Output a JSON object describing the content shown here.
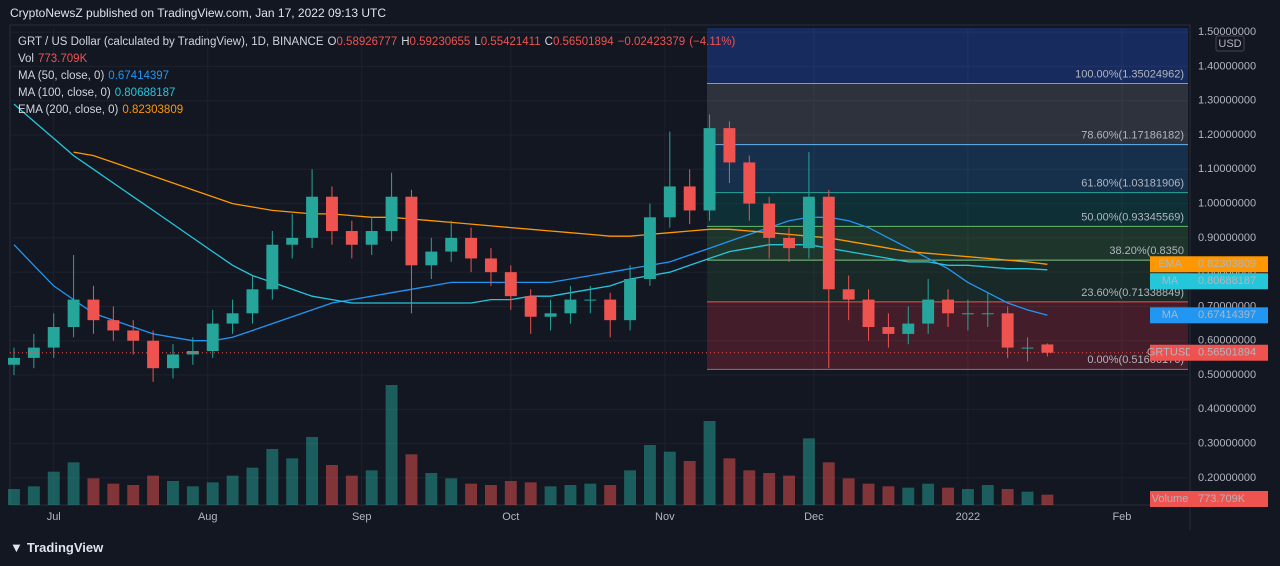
{
  "header": {
    "title": "CryptoNewsZ published on TradingView.com, Jan 17, 2022 09:13 UTC"
  },
  "legend": {
    "symbol": "GRT / US Dollar (calculated by TradingView), 1D, BINANCE",
    "ohlc": [
      {
        "label": "O",
        "value": 0.58926777
      },
      {
        "label": "H",
        "value": 0.59230655
      },
      {
        "label": "L",
        "value": 0.55421411
      },
      {
        "label": "C",
        "value": 0.56501894
      }
    ],
    "change": {
      "value": -0.02423379,
      "label": "−0.02423379"
    },
    "change_pct": {
      "value": -4.11,
      "label": "(−4.11%)"
    },
    "vol_name": "Vol"
  },
  "chart_data": {
    "type": "candlestick",
    "x": [
      1,
      5,
      9,
      13,
      17,
      21,
      25,
      29,
      33,
      37,
      41,
      45,
      49,
      53,
      57,
      61,
      65,
      69,
      73,
      77,
      81,
      85,
      89,
      93,
      97,
      101,
      105,
      109,
      113,
      117,
      121,
      125,
      129,
      133,
      137,
      141,
      145,
      149,
      153,
      157,
      161,
      165,
      169,
      173,
      177,
      181,
      185,
      189,
      193,
      197,
      201,
      205,
      209
    ],
    "open": [
      0.53,
      0.55,
      0.58,
      0.64,
      0.72,
      0.66,
      0.63,
      0.6,
      0.52,
      0.56,
      0.57,
      0.65,
      0.68,
      0.75,
      0.88,
      0.9,
      1.02,
      0.92,
      0.88,
      0.92,
      1.02,
      0.82,
      0.86,
      0.9,
      0.84,
      0.8,
      0.73,
      0.67,
      0.68,
      0.72,
      0.72,
      0.66,
      0.78,
      0.96,
      1.05,
      0.98,
      1.22,
      1.12,
      1.0,
      0.9,
      0.87,
      1.02,
      0.75,
      0.72,
      0.64,
      0.62,
      0.65,
      0.72,
      0.68,
      0.68,
      0.68,
      0.58,
      0.58926777
    ],
    "high": [
      0.58,
      0.62,
      0.68,
      0.85,
      0.76,
      0.7,
      0.66,
      0.63,
      0.59,
      0.61,
      0.69,
      0.72,
      0.79,
      0.92,
      0.97,
      1.1,
      1.05,
      0.95,
      0.96,
      1.09,
      1.04,
      0.9,
      0.95,
      0.93,
      0.87,
      0.82,
      0.75,
      0.72,
      0.76,
      0.76,
      0.74,
      0.82,
      1.0,
      1.21,
      1.1,
      1.26,
      1.24,
      1.14,
      1.02,
      0.93,
      1.15,
      1.04,
      0.79,
      0.75,
      0.68,
      0.7,
      0.78,
      0.75,
      0.72,
      0.74,
      0.7,
      0.61,
      0.59230655
    ],
    "low": [
      0.5,
      0.52,
      0.55,
      0.61,
      0.62,
      0.6,
      0.56,
      0.48,
      0.49,
      0.53,
      0.55,
      0.62,
      0.65,
      0.72,
      0.84,
      0.87,
      0.88,
      0.84,
      0.85,
      0.89,
      0.68,
      0.78,
      0.83,
      0.8,
      0.76,
      0.69,
      0.62,
      0.63,
      0.65,
      0.68,
      0.61,
      0.63,
      0.76,
      0.93,
      0.94,
      0.95,
      1.06,
      0.95,
      0.84,
      0.83,
      0.84,
      0.52,
      0.66,
      0.6,
      0.58,
      0.59,
      0.62,
      0.64,
      0.63,
      0.64,
      0.55,
      0.54,
      0.55421411
    ],
    "close": [
      0.55,
      0.58,
      0.64,
      0.72,
      0.66,
      0.63,
      0.6,
      0.52,
      0.56,
      0.57,
      0.65,
      0.68,
      0.75,
      0.88,
      0.9,
      1.02,
      0.92,
      0.88,
      0.92,
      1.02,
      0.82,
      0.86,
      0.9,
      0.84,
      0.8,
      0.73,
      0.67,
      0.68,
      0.72,
      0.72,
      0.66,
      0.78,
      0.96,
      1.05,
      0.98,
      1.22,
      1.12,
      1.0,
      0.9,
      0.87,
      1.02,
      0.75,
      0.72,
      0.64,
      0.62,
      0.65,
      0.72,
      0.68,
      0.68,
      0.68,
      0.58,
      0.58,
      0.56501894
    ],
    "up_color": "#26a69a",
    "down_color": "#ef5350",
    "volume": {
      "name": "Volume",
      "values": [
        1200000,
        1400000,
        2500000,
        3200000,
        2000000,
        1600000,
        1500000,
        2200000,
        1800000,
        1400000,
        1700000,
        2200000,
        2800000,
        4200000,
        3500000,
        5100000,
        3000000,
        2200000,
        2600000,
        9000000,
        3800000,
        2400000,
        2000000,
        1600000,
        1500000,
        1800000,
        1700000,
        1400000,
        1500000,
        1600000,
        1500000,
        2600000,
        4500000,
        4000000,
        3300000,
        6300000,
        3500000,
        2600000,
        2400000,
        2200000,
        5000000,
        3200000,
        2000000,
        1600000,
        1400000,
        1300000,
        1600000,
        1300000,
        1200000,
        1500000,
        1200000,
        1000000,
        773709
      ],
      "value_labels": [
        null,
        null,
        null,
        null,
        null,
        null,
        null,
        null,
        null,
        null,
        null,
        null,
        null,
        null,
        null,
        null,
        null,
        null,
        null,
        null,
        null,
        null,
        null,
        null,
        null,
        null,
        null,
        null,
        null,
        null,
        null,
        null,
        null,
        null,
        null,
        null,
        null,
        null,
        null,
        null,
        null,
        null,
        null,
        null,
        null,
        null,
        null,
        null,
        null,
        null,
        null,
        null,
        "773.709K"
      ]
    },
    "series": [
      {
        "name": "MA (50, close, 0)",
        "badge": "MA",
        "color": "#2196f3",
        "values": [
          0.88,
          0.82,
          0.76,
          0.72,
          0.68,
          0.66,
          0.64,
          0.62,
          0.61,
          0.6,
          0.6,
          0.61,
          0.63,
          0.65,
          0.67,
          0.69,
          0.71,
          0.72,
          0.73,
          0.74,
          0.75,
          0.76,
          0.77,
          0.77,
          0.77,
          0.77,
          0.77,
          0.77,
          0.78,
          0.79,
          0.8,
          0.81,
          0.82,
          0.83,
          0.85,
          0.87,
          0.89,
          0.91,
          0.93,
          0.95,
          0.96,
          0.96,
          0.95,
          0.93,
          0.9,
          0.87,
          0.84,
          0.81,
          0.77,
          0.74,
          0.71,
          0.69,
          0.67414397
        ]
      },
      {
        "name": "MA (100, close, 0)",
        "badge": "MA",
        "color": "#26c6da",
        "values": [
          1.29,
          1.24,
          1.19,
          1.14,
          1.1,
          1.06,
          1.02,
          0.98,
          0.94,
          0.9,
          0.86,
          0.82,
          0.79,
          0.77,
          0.75,
          0.73,
          0.72,
          0.71,
          0.71,
          0.71,
          0.71,
          0.71,
          0.71,
          0.71,
          0.72,
          0.72,
          0.73,
          0.73,
          0.74,
          0.75,
          0.76,
          0.78,
          0.79,
          0.8,
          0.82,
          0.84,
          0.86,
          0.87,
          0.88,
          0.88,
          0.88,
          0.87,
          0.86,
          0.85,
          0.84,
          0.83,
          0.83,
          0.82,
          0.82,
          0.815,
          0.81,
          0.81,
          0.80688187
        ]
      },
      {
        "name": "EMA (200, close, 0)",
        "badge": "EMA",
        "color": "#ff9800",
        "values": [
          null,
          null,
          null,
          1.15,
          1.14,
          1.12,
          1.1,
          1.08,
          1.06,
          1.04,
          1.02,
          1.0,
          0.99,
          0.98,
          0.975,
          0.97,
          0.97,
          0.965,
          0.96,
          0.96,
          0.955,
          0.95,
          0.945,
          0.94,
          0.935,
          0.93,
          0.925,
          0.92,
          0.915,
          0.91,
          0.905,
          0.905,
          0.91,
          0.915,
          0.92,
          0.925,
          0.925,
          0.92,
          0.915,
          0.91,
          0.905,
          0.9,
          0.89,
          0.88,
          0.87,
          0.86,
          0.855,
          0.85,
          0.845,
          0.84,
          0.835,
          0.83,
          0.82303809
        ]
      }
    ],
    "price_badge": "GRTUSD",
    "ylim": [
      0.121,
      1.512
    ],
    "y_unit": "USD",
    "yticks": [
      {
        "value": 0.2,
        "label": "0.20000000"
      },
      {
        "value": 0.3,
        "label": "0.30000000"
      },
      {
        "value": 0.4,
        "label": "0.40000000"
      },
      {
        "value": 0.5,
        "label": "0.50000000"
      },
      {
        "value": 0.6,
        "label": "0.60000000"
      },
      {
        "value": 0.7,
        "label": "0.70000000"
      },
      {
        "value": 0.8,
        "label": "0.80000000"
      },
      {
        "value": 0.9,
        "label": "0.90000000"
      },
      {
        "value": 1.0,
        "label": "1.00000000"
      },
      {
        "value": 1.1,
        "label": "1.10000000"
      },
      {
        "value": 1.2,
        "label": "1.20000000"
      },
      {
        "value": 1.3,
        "label": "1.30000000"
      },
      {
        "value": 1.4,
        "label": "1.40000000"
      },
      {
        "value": 1.5,
        "label": "1.50000000"
      }
    ],
    "xlim": [
      0.2,
      237.7
    ],
    "xticks": [
      {
        "value": 9,
        "label": "Jul"
      },
      {
        "value": 40,
        "label": "Aug"
      },
      {
        "value": 71,
        "label": "Sep"
      },
      {
        "value": 101,
        "label": "Oct"
      },
      {
        "value": 132,
        "label": "Nov"
      },
      {
        "value": 162,
        "label": "Dec"
      },
      {
        "value": 193,
        "label": "2022"
      },
      {
        "value": 224,
        "label": "Feb"
      }
    ],
    "fib": {
      "top_fill": "rgba(41,98,255,0.28)",
      "levels": [
        {
          "value": 1.35024962,
          "label": "100.00%(1.35024962)",
          "color": "#9598a1",
          "fill": "rgba(120,123,134,0.28)"
        },
        {
          "value": 1.17186182,
          "label": "78.60%(1.17186182)",
          "color": "#64b5f6",
          "fill": "rgba(33,150,243,0.2)"
        },
        {
          "value": 1.03181906,
          "label": "61.80%(1.03181906)",
          "color": "#26a69a",
          "fill": "rgba(0,137,123,0.22)"
        },
        {
          "value": 0.93345569,
          "label": "50.00%(0.93345569)",
          "color": "#66bb6a",
          "fill": "rgba(76,175,80,0.2)"
        },
        {
          "value": 0.83509219,
          "label": "38.20%(0.8350",
          "color": "#81c784",
          "fill": "rgba(76,175,80,0.12)"
        },
        {
          "value": 0.71338849,
          "label": "23.60%(0.71338849)",
          "color": "#ef5350",
          "fill": "rgba(242,54,69,0.22)"
        },
        {
          "value": 0.51666176,
          "label": "0.00%(0.51666176)",
          "color": "#787b86",
          "fill": null
        }
      ]
    }
  },
  "footer": {
    "brand": "TradingView"
  }
}
